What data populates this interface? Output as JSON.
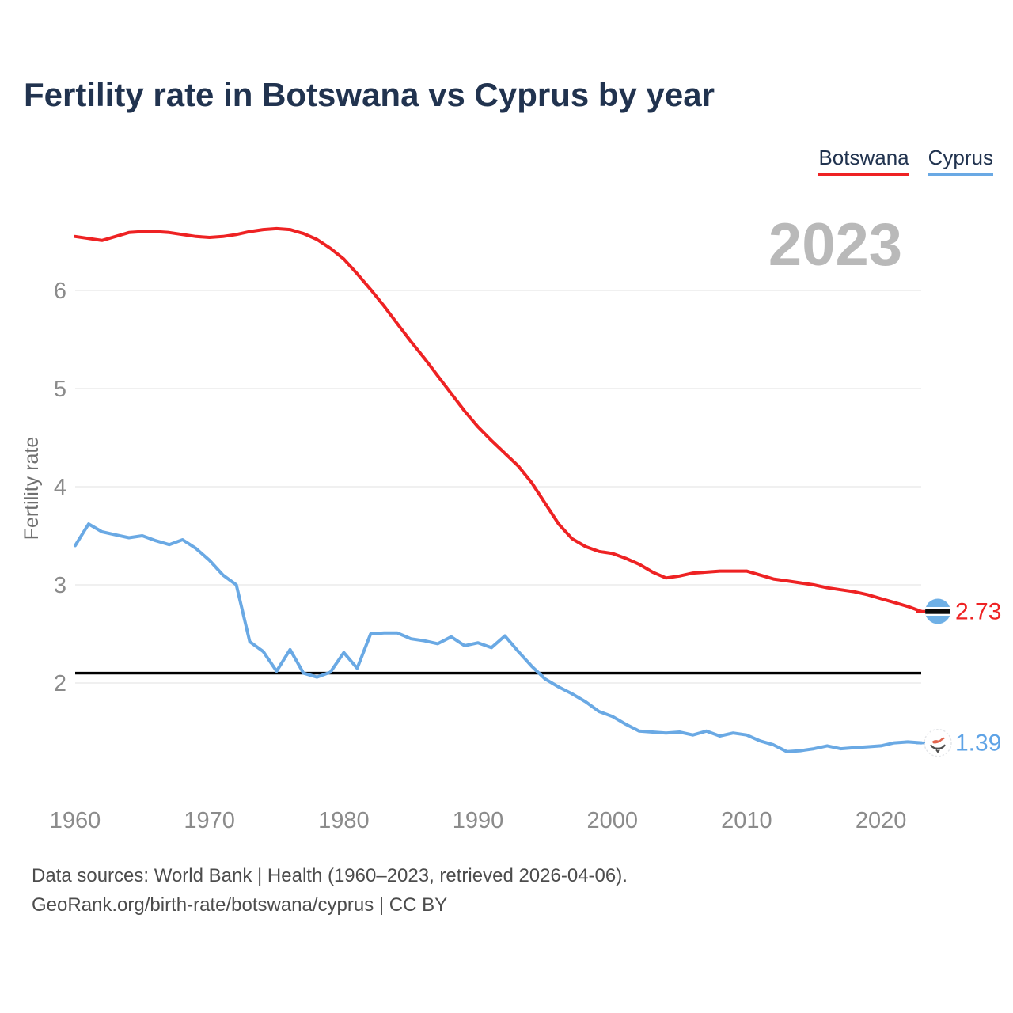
{
  "header": {
    "title": "Fertility rate in Botswana vs Cyprus by year"
  },
  "legend": {
    "items": [
      {
        "label": "Botswana",
        "color": "#ee2223"
      },
      {
        "label": "Cyprus",
        "color": "#6aa9e4"
      }
    ]
  },
  "watermark": {
    "year": "2023"
  },
  "chart_data": {
    "type": "line",
    "title": "Fertility rate in Botswana vs Cyprus by year",
    "xlabel": "",
    "ylabel": "Fertility rate",
    "x_ticks": [
      1960,
      1970,
      1980,
      1990,
      2000,
      2010,
      2020
    ],
    "y_ticks": [
      6,
      5,
      4,
      3,
      2
    ],
    "ylim": [
      1.1,
      6.7
    ],
    "xlim": [
      1960,
      2023
    ],
    "grid": "horizontal",
    "legend_position": "top-right",
    "reference_line": {
      "value": 2.1,
      "color": "#000000"
    },
    "x": [
      1960,
      1961,
      1962,
      1963,
      1964,
      1965,
      1966,
      1967,
      1968,
      1969,
      1970,
      1971,
      1972,
      1973,
      1974,
      1975,
      1976,
      1977,
      1978,
      1979,
      1980,
      1981,
      1982,
      1983,
      1984,
      1985,
      1986,
      1987,
      1988,
      1989,
      1990,
      1991,
      1992,
      1993,
      1994,
      1995,
      1996,
      1997,
      1998,
      1999,
      2000,
      2001,
      2002,
      2003,
      2004,
      2005,
      2006,
      2007,
      2008,
      2009,
      2010,
      2011,
      2012,
      2013,
      2014,
      2015,
      2016,
      2017,
      2018,
      2019,
      2020,
      2021,
      2022,
      2023
    ],
    "series": [
      {
        "name": "Botswana",
        "color": "#ee2223",
        "end_label": "2.73",
        "values": [
          6.55,
          6.53,
          6.51,
          6.55,
          6.59,
          6.6,
          6.6,
          6.59,
          6.57,
          6.55,
          6.54,
          6.55,
          6.57,
          6.6,
          6.62,
          6.63,
          6.62,
          6.58,
          6.52,
          6.43,
          6.32,
          6.17,
          6.01,
          5.84,
          5.66,
          5.48,
          5.31,
          5.13,
          4.95,
          4.77,
          4.61,
          4.47,
          4.34,
          4.21,
          4.04,
          3.83,
          3.62,
          3.47,
          3.39,
          3.34,
          3.32,
          3.27,
          3.21,
          3.13,
          3.07,
          3.09,
          3.12,
          3.13,
          3.14,
          3.14,
          3.14,
          3.1,
          3.06,
          3.04,
          3.02,
          3.0,
          2.97,
          2.95,
          2.93,
          2.9,
          2.86,
          2.82,
          2.78,
          2.73
        ]
      },
      {
        "name": "Cyprus",
        "color": "#6aa9e4",
        "end_label": "1.39",
        "values": [
          3.4,
          3.62,
          3.54,
          3.51,
          3.48,
          3.5,
          3.45,
          3.41,
          3.46,
          3.37,
          3.25,
          3.1,
          3.0,
          2.42,
          2.32,
          2.12,
          2.34,
          2.1,
          2.06,
          2.11,
          2.31,
          2.15,
          2.5,
          2.51,
          2.51,
          2.45,
          2.43,
          2.4,
          2.47,
          2.38,
          2.41,
          2.36,
          2.48,
          2.32,
          2.17,
          2.04,
          1.96,
          1.89,
          1.81,
          1.71,
          1.66,
          1.58,
          1.51,
          1.5,
          1.49,
          1.5,
          1.47,
          1.51,
          1.46,
          1.49,
          1.47,
          1.41,
          1.37,
          1.3,
          1.31,
          1.33,
          1.36,
          1.33,
          1.34,
          1.35,
          1.36,
          1.39,
          1.4,
          1.39
        ]
      }
    ]
  },
  "footer": {
    "line1": "Data sources: World Bank | Health (1960–2023, retrieved 2026-04-06).",
    "line2": "GeoRank.org/birth-rate/botswana/cyprus | CC BY"
  }
}
